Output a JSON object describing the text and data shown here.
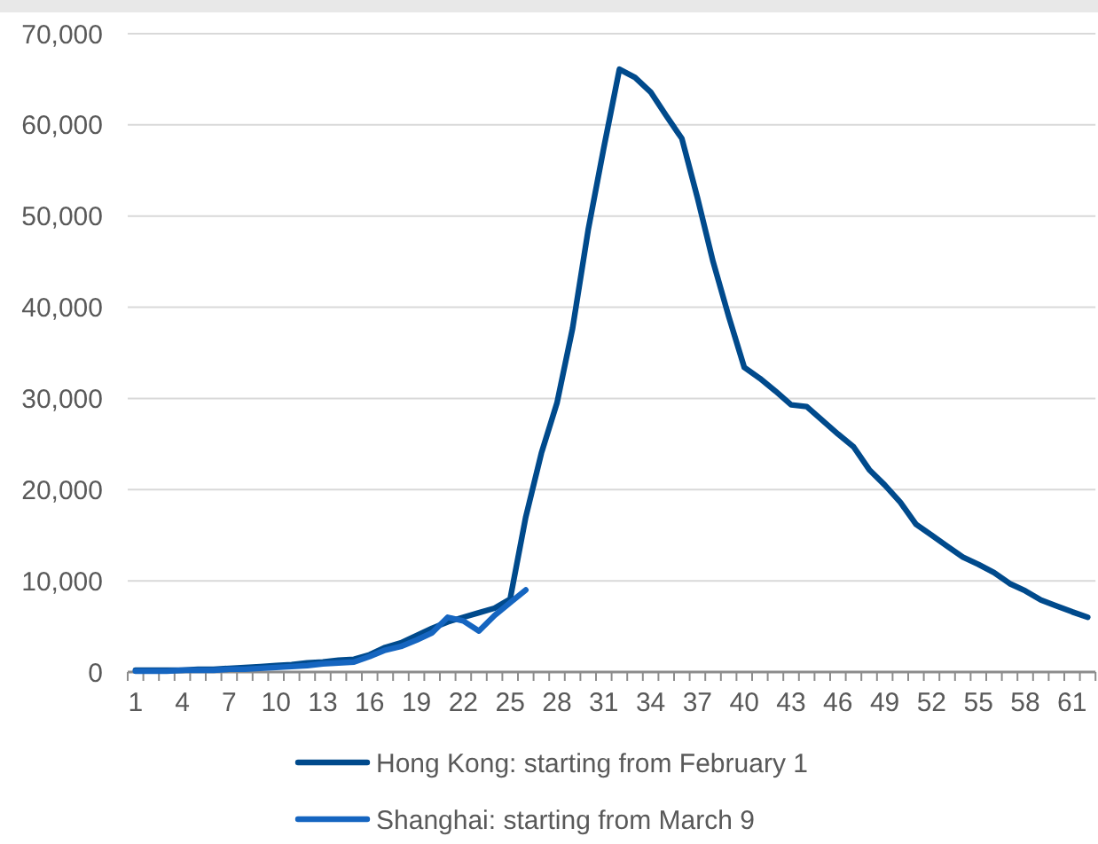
{
  "chart_data": {
    "type": "line",
    "categories": [
      "1",
      null,
      null,
      "4",
      null,
      null,
      "7",
      null,
      null,
      "10",
      null,
      null,
      "13",
      null,
      null,
      "16",
      null,
      null,
      "19",
      null,
      null,
      "22",
      null,
      null,
      "25",
      null,
      null,
      "28",
      null,
      null,
      "31",
      null,
      null,
      "34",
      null,
      null,
      "37",
      null,
      null,
      "40",
      null,
      null,
      "43",
      null,
      null,
      "46",
      null,
      null,
      "49",
      null,
      null,
      "52",
      null,
      null,
      "55",
      null,
      null,
      "58",
      null,
      null,
      "61",
      null
    ],
    "ylim": [
      0,
      70000
    ],
    "yticks": [
      {
        "value": 0,
        "label": "0"
      },
      {
        "value": 10000,
        "label": "10,000"
      },
      {
        "value": 20000,
        "label": "20,000"
      },
      {
        "value": 30000,
        "label": "30,000"
      },
      {
        "value": 40000,
        "label": "40,000"
      },
      {
        "value": 50000,
        "label": "50,000"
      },
      {
        "value": 60000,
        "label": "60,000"
      },
      {
        "value": 70000,
        "label": "70,000"
      }
    ],
    "grid": "y",
    "legend": "bottom",
    "line_style": "solid",
    "marker": "none",
    "series": [
      {
        "name": "Hong Kong: starting from February 1",
        "color": "#004a8c",
        "values": [
          200,
          200,
          200,
          200,
          300,
          300,
          400,
          500,
          600,
          700,
          800,
          1000,
          1100,
          1300,
          1400,
          1900,
          2700,
          3200,
          4000,
          4800,
          5500,
          6000,
          6500,
          7000,
          8000,
          17000,
          24000,
          29500,
          37700,
          48500,
          57500,
          66100,
          65200,
          63600,
          61000,
          58500,
          52000,
          45000,
          39000,
          33400,
          32200,
          30800,
          29300,
          29100,
          27600,
          26100,
          24700,
          22200,
          20500,
          18600,
          16200,
          15000,
          13800,
          12600,
          11800,
          10900,
          9700,
          8900,
          7900,
          7250,
          6600,
          6000
        ]
      },
      {
        "name": "Shanghai: starting from March 9",
        "color": "#1565c0",
        "values": [
          100,
          100,
          100,
          200,
          200,
          200,
          300,
          300,
          400,
          500,
          600,
          700,
          900,
          1000,
          1100,
          1700,
          2400,
          2800,
          3500,
          4300,
          6000,
          5600,
          4500,
          6200,
          7600,
          9000,
          null,
          null,
          null,
          null,
          null,
          null,
          null,
          null,
          null,
          null,
          null,
          null,
          null,
          null,
          null,
          null,
          null,
          null,
          null,
          null,
          null,
          null,
          null,
          null,
          null,
          null,
          null,
          null,
          null,
          null,
          null,
          null,
          null,
          null,
          null,
          null
        ]
      }
    ]
  }
}
